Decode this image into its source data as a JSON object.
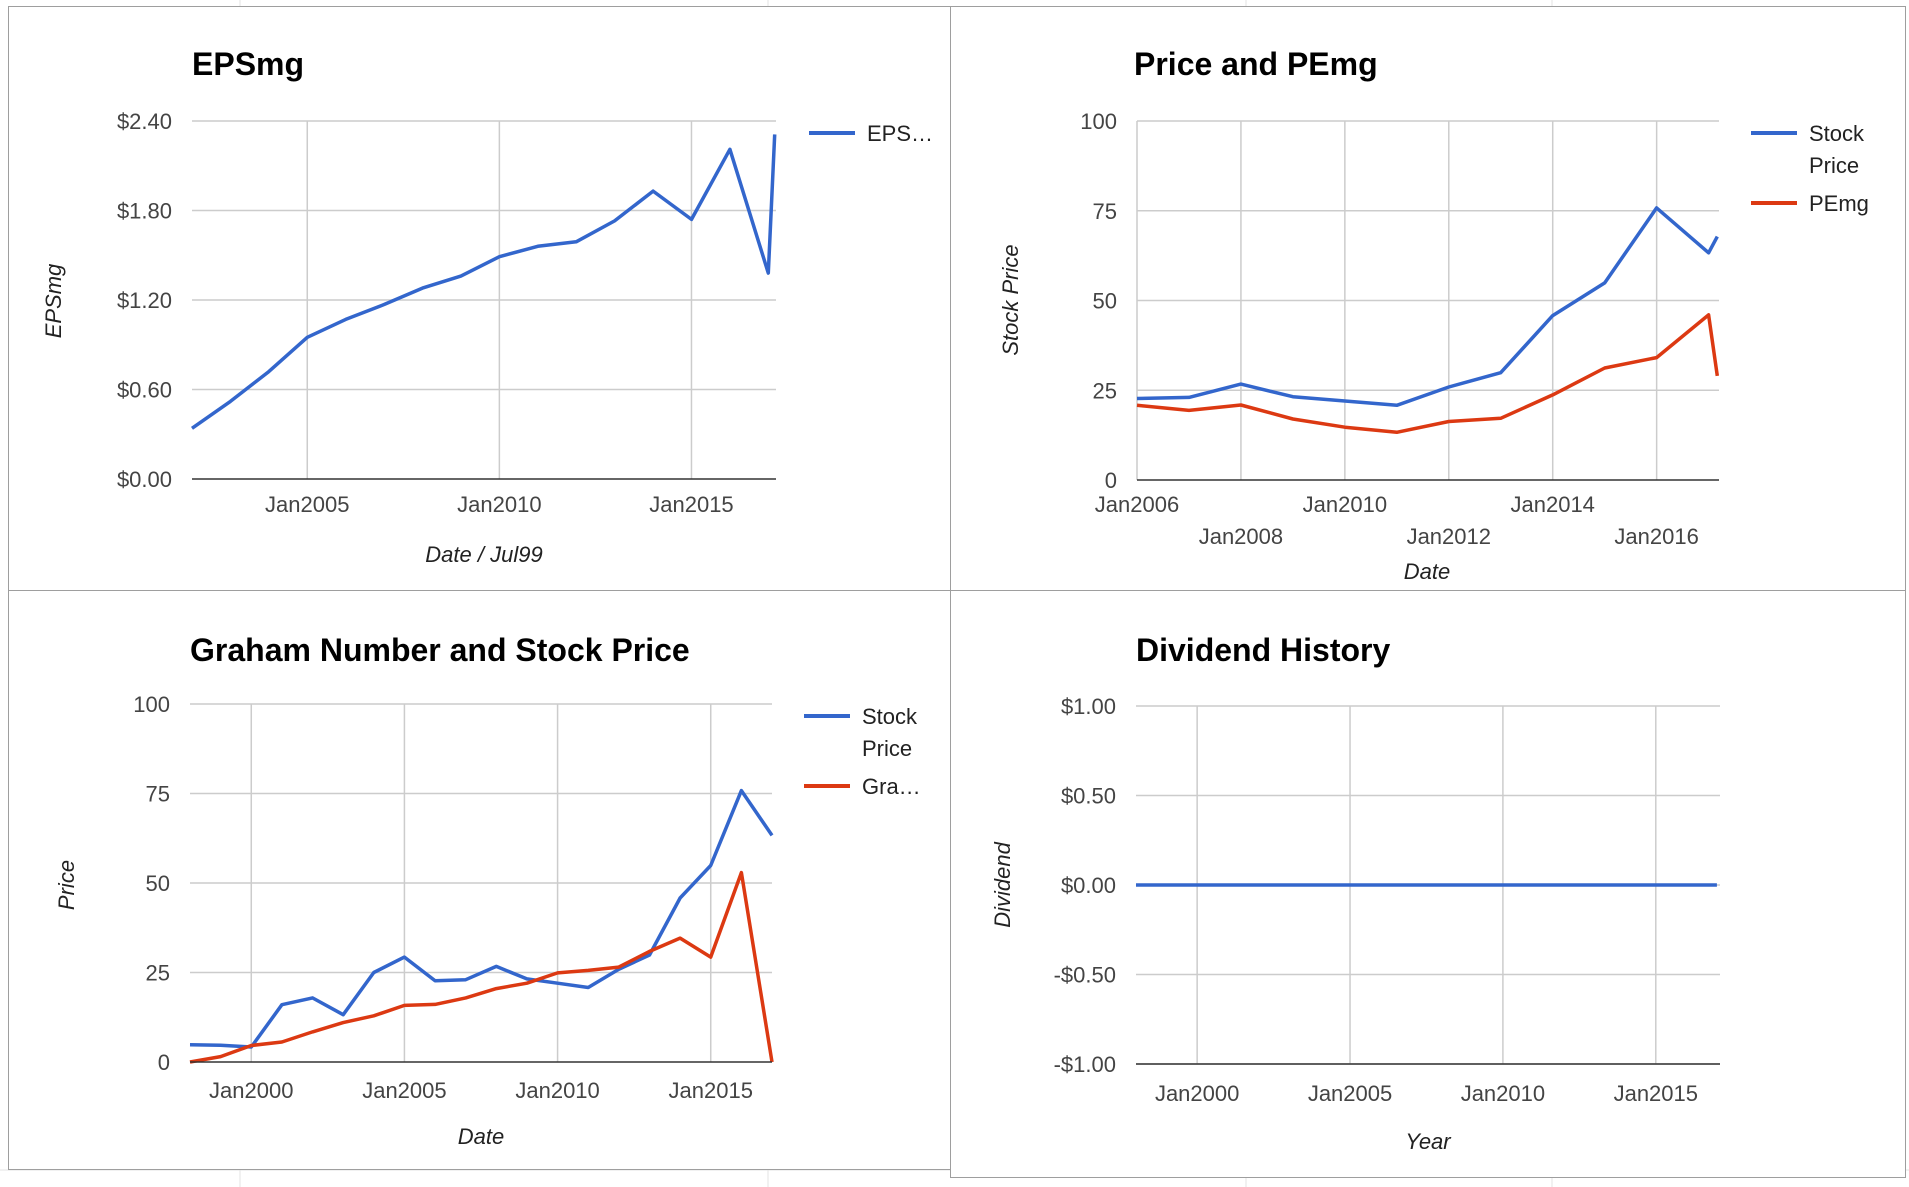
{
  "colors": {
    "blue": "#3366cc",
    "red": "#dc3912",
    "grid": "#cccccc"
  },
  "chart_data": [
    {
      "type": "line",
      "title": "EPSmg",
      "xlabel": "Date / Jul99",
      "ylabel": "EPSmg",
      "ylim": [
        0,
        2.4
      ],
      "yticks": [
        "$0.00",
        "$0.60",
        "$1.20",
        "$1.80",
        "$2.40"
      ],
      "xticks": [
        "Jan2005",
        "Jan2010",
        "Jan2015"
      ],
      "grid": true,
      "legend": "right",
      "series": [
        {
          "name": "EPS…",
          "color": "#3366cc",
          "x": [
            "Jan2002",
            "Jan2003",
            "Jan2004",
            "Jan2005",
            "Jan2006",
            "Jan2007",
            "Jan2008",
            "Jan2009",
            "Jan2010",
            "Jan2011",
            "Jan2012",
            "Jan2013",
            "Jan2014",
            "Jan2015",
            "Jan2016",
            "Jan2017",
            "Mar2017"
          ],
          "values": [
            0.34,
            0.52,
            0.72,
            0.95,
            1.07,
            1.17,
            1.28,
            1.36,
            1.49,
            1.56,
            1.59,
            1.73,
            1.93,
            1.74,
            2.21,
            1.38,
            2.31
          ]
        }
      ]
    },
    {
      "type": "line",
      "title": "Price and PEmg",
      "xlabel": "Date",
      "ylabel": "Stock Price",
      "ylim": [
        0,
        100
      ],
      "yticks": [
        "0",
        "25",
        "50",
        "75",
        "100"
      ],
      "xticks": [
        "Jan2006",
        "Jan2008",
        "Jan2010",
        "Jan2012",
        "Jan2014",
        "Jan2016"
      ],
      "grid": true,
      "legend": "right",
      "series": [
        {
          "name": "Stock Price",
          "color": "#3366cc",
          "x": [
            "Jan2006",
            "Jan2007",
            "Jan2008",
            "Jan2009",
            "Jan2010",
            "Jan2011",
            "Jan2012",
            "Jan2013",
            "Jan2014",
            "Jan2015",
            "Jan2016",
            "Jan2017",
            "Mar2017"
          ],
          "values": [
            22.7,
            23.0,
            26.7,
            23.2,
            22.0,
            20.8,
            25.9,
            29.9,
            45.8,
            54.9,
            75.8,
            63.3,
            67.8
          ]
        },
        {
          "name": "PEmg",
          "color": "#dc3912",
          "x": [
            "Jan2006",
            "Jan2007",
            "Jan2008",
            "Jan2009",
            "Jan2010",
            "Jan2011",
            "Jan2012",
            "Jan2013",
            "Jan2014",
            "Jan2015",
            "Jan2016",
            "Jan2017",
            "Mar2017"
          ],
          "values": [
            20.8,
            19.4,
            20.9,
            17.0,
            14.7,
            13.3,
            16.3,
            17.2,
            23.7,
            31.2,
            34.1,
            46.0,
            29.0
          ]
        }
      ]
    },
    {
      "type": "line",
      "title": "Graham Number and Stock Price",
      "xlabel": "Date",
      "ylabel": "Price",
      "ylim": [
        0,
        100
      ],
      "yticks": [
        "0",
        "25",
        "50",
        "75",
        "100"
      ],
      "xticks": [
        "Jan2000",
        "Jan2005",
        "Jan2010",
        "Jan2015"
      ],
      "grid": true,
      "legend": "right",
      "series": [
        {
          "name": "Stock Price",
          "color": "#3366cc",
          "x": [
            "Jan1998",
            "Jan1999",
            "Jan2000",
            "Jan2001",
            "Jan2002",
            "Jan2003",
            "Jan2004",
            "Jan2005",
            "Jan2006",
            "Jan2007",
            "Jan2008",
            "Jan2009",
            "Jan2010",
            "Jan2011",
            "Jan2012",
            "Jan2013",
            "Jan2014",
            "Jan2015",
            "Jan2016",
            "Jan2017"
          ],
          "values": [
            4.8,
            4.7,
            4.2,
            16.0,
            17.9,
            13.2,
            25.0,
            29.3,
            22.7,
            23.0,
            26.7,
            23.2,
            22.0,
            20.8,
            25.9,
            29.9,
            45.8,
            54.9,
            75.8,
            63.3
          ]
        },
        {
          "name": "Gra…",
          "color": "#dc3912",
          "x": [
            "Jan1998",
            "Jan1999",
            "Jan2000",
            "Jan2001",
            "Jan2002",
            "Jan2003",
            "Jan2004",
            "Jan2005",
            "Jan2006",
            "Jan2007",
            "Jan2008",
            "Jan2009",
            "Jan2010",
            "Jan2011",
            "Jan2012",
            "Jan2013",
            "Jan2014",
            "Jan2015",
            "Jan2016",
            "Jan2017"
          ],
          "values": [
            0,
            1.5,
            4.6,
            5.6,
            8.4,
            11.0,
            12.9,
            15.8,
            16.1,
            17.9,
            20.5,
            22.0,
            24.9,
            25.6,
            26.5,
            30.9,
            34.6,
            29.3,
            52.9,
            0
          ]
        }
      ]
    },
    {
      "type": "line",
      "title": "Dividend History",
      "xlabel": "Year",
      "ylabel": "Dividend",
      "ylim": [
        -1,
        1
      ],
      "yticks": [
        "-$1.00",
        "-$0.50",
        "$0.00",
        "$0.50",
        "$1.00"
      ],
      "xticks": [
        "Jan2000",
        "Jan2005",
        "Jan2010",
        "Jan2015"
      ],
      "grid": true,
      "legend": "none",
      "series": [
        {
          "color": "#3366cc",
          "x": [
            "Jan1998",
            "Jan2017"
          ],
          "values": [
            0,
            0
          ]
        }
      ]
    }
  ]
}
